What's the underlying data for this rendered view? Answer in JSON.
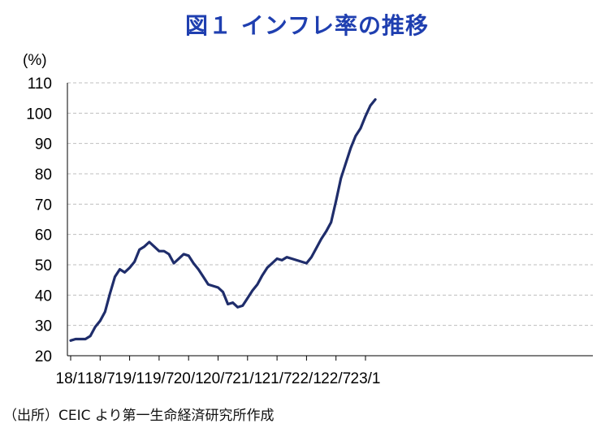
{
  "title": "図１ インフレ率の推移",
  "source": "（出所）CEIC より第一生命経済研究所作成",
  "colors": {
    "title": "#1f3fb0",
    "line": "#1f2d6b",
    "grid": "#bfbfbf",
    "axis": "#000000"
  },
  "chart_data": {
    "type": "line",
    "title": "図１ インフレ率の推移",
    "ylabel": "(%)",
    "xlabel": "",
    "ylim": [
      20,
      110
    ],
    "yticks": [
      20,
      30,
      40,
      50,
      60,
      70,
      80,
      90,
      100,
      110
    ],
    "grid": true,
    "legend": "none",
    "xtick_labels": [
      "18/1",
      "18/7",
      "19/1",
      "19/7",
      "20/1",
      "20/7",
      "21/1",
      "21/7",
      "22/1",
      "22/7",
      "23/1"
    ],
    "x": [
      "18/1",
      "18/2",
      "18/3",
      "18/4",
      "18/5",
      "18/6",
      "18/7",
      "18/8",
      "18/9",
      "18/10",
      "18/11",
      "18/12",
      "19/1",
      "19/2",
      "19/3",
      "19/4",
      "19/5",
      "19/6",
      "19/7",
      "19/8",
      "19/9",
      "19/10",
      "19/11",
      "19/12",
      "20/1",
      "20/2",
      "20/3",
      "20/4",
      "20/5",
      "20/6",
      "20/7",
      "20/8",
      "20/9",
      "20/10",
      "20/11",
      "20/12",
      "21/1",
      "21/2",
      "21/3",
      "21/4",
      "21/5",
      "21/6",
      "21/7",
      "21/8",
      "21/9",
      "21/10",
      "21/11",
      "21/12",
      "22/1",
      "22/2",
      "22/3",
      "22/4",
      "22/5",
      "22/6",
      "22/7",
      "22/8",
      "22/9",
      "22/10",
      "22/11",
      "22/12",
      "23/1",
      "23/2",
      "23/3"
    ],
    "series": [
      {
        "values": [
          25.0,
          25.5,
          25.5,
          25.5,
          26.5,
          29.5,
          31.5,
          34.5,
          40.5,
          46.0,
          48.5,
          47.5,
          49.0,
          51.0,
          55.0,
          56.0,
          57.5,
          56.0,
          54.5,
          54.5,
          53.5,
          50.5,
          52.0,
          53.5,
          53.0,
          50.5,
          48.5,
          46.0,
          43.5,
          43.0,
          42.5,
          41.0,
          37.0,
          37.5,
          36.0,
          36.5,
          39.0,
          41.5,
          43.5,
          46.5,
          49.0,
          50.5,
          52.0,
          51.5,
          52.5,
          52.0,
          51.5,
          51.0,
          50.5,
          52.5,
          55.5,
          58.5,
          61.0,
          64.0,
          71.0,
          78.5,
          83.5,
          88.5,
          92.5,
          95.0,
          99.0,
          102.5,
          104.5
        ]
      }
    ]
  }
}
